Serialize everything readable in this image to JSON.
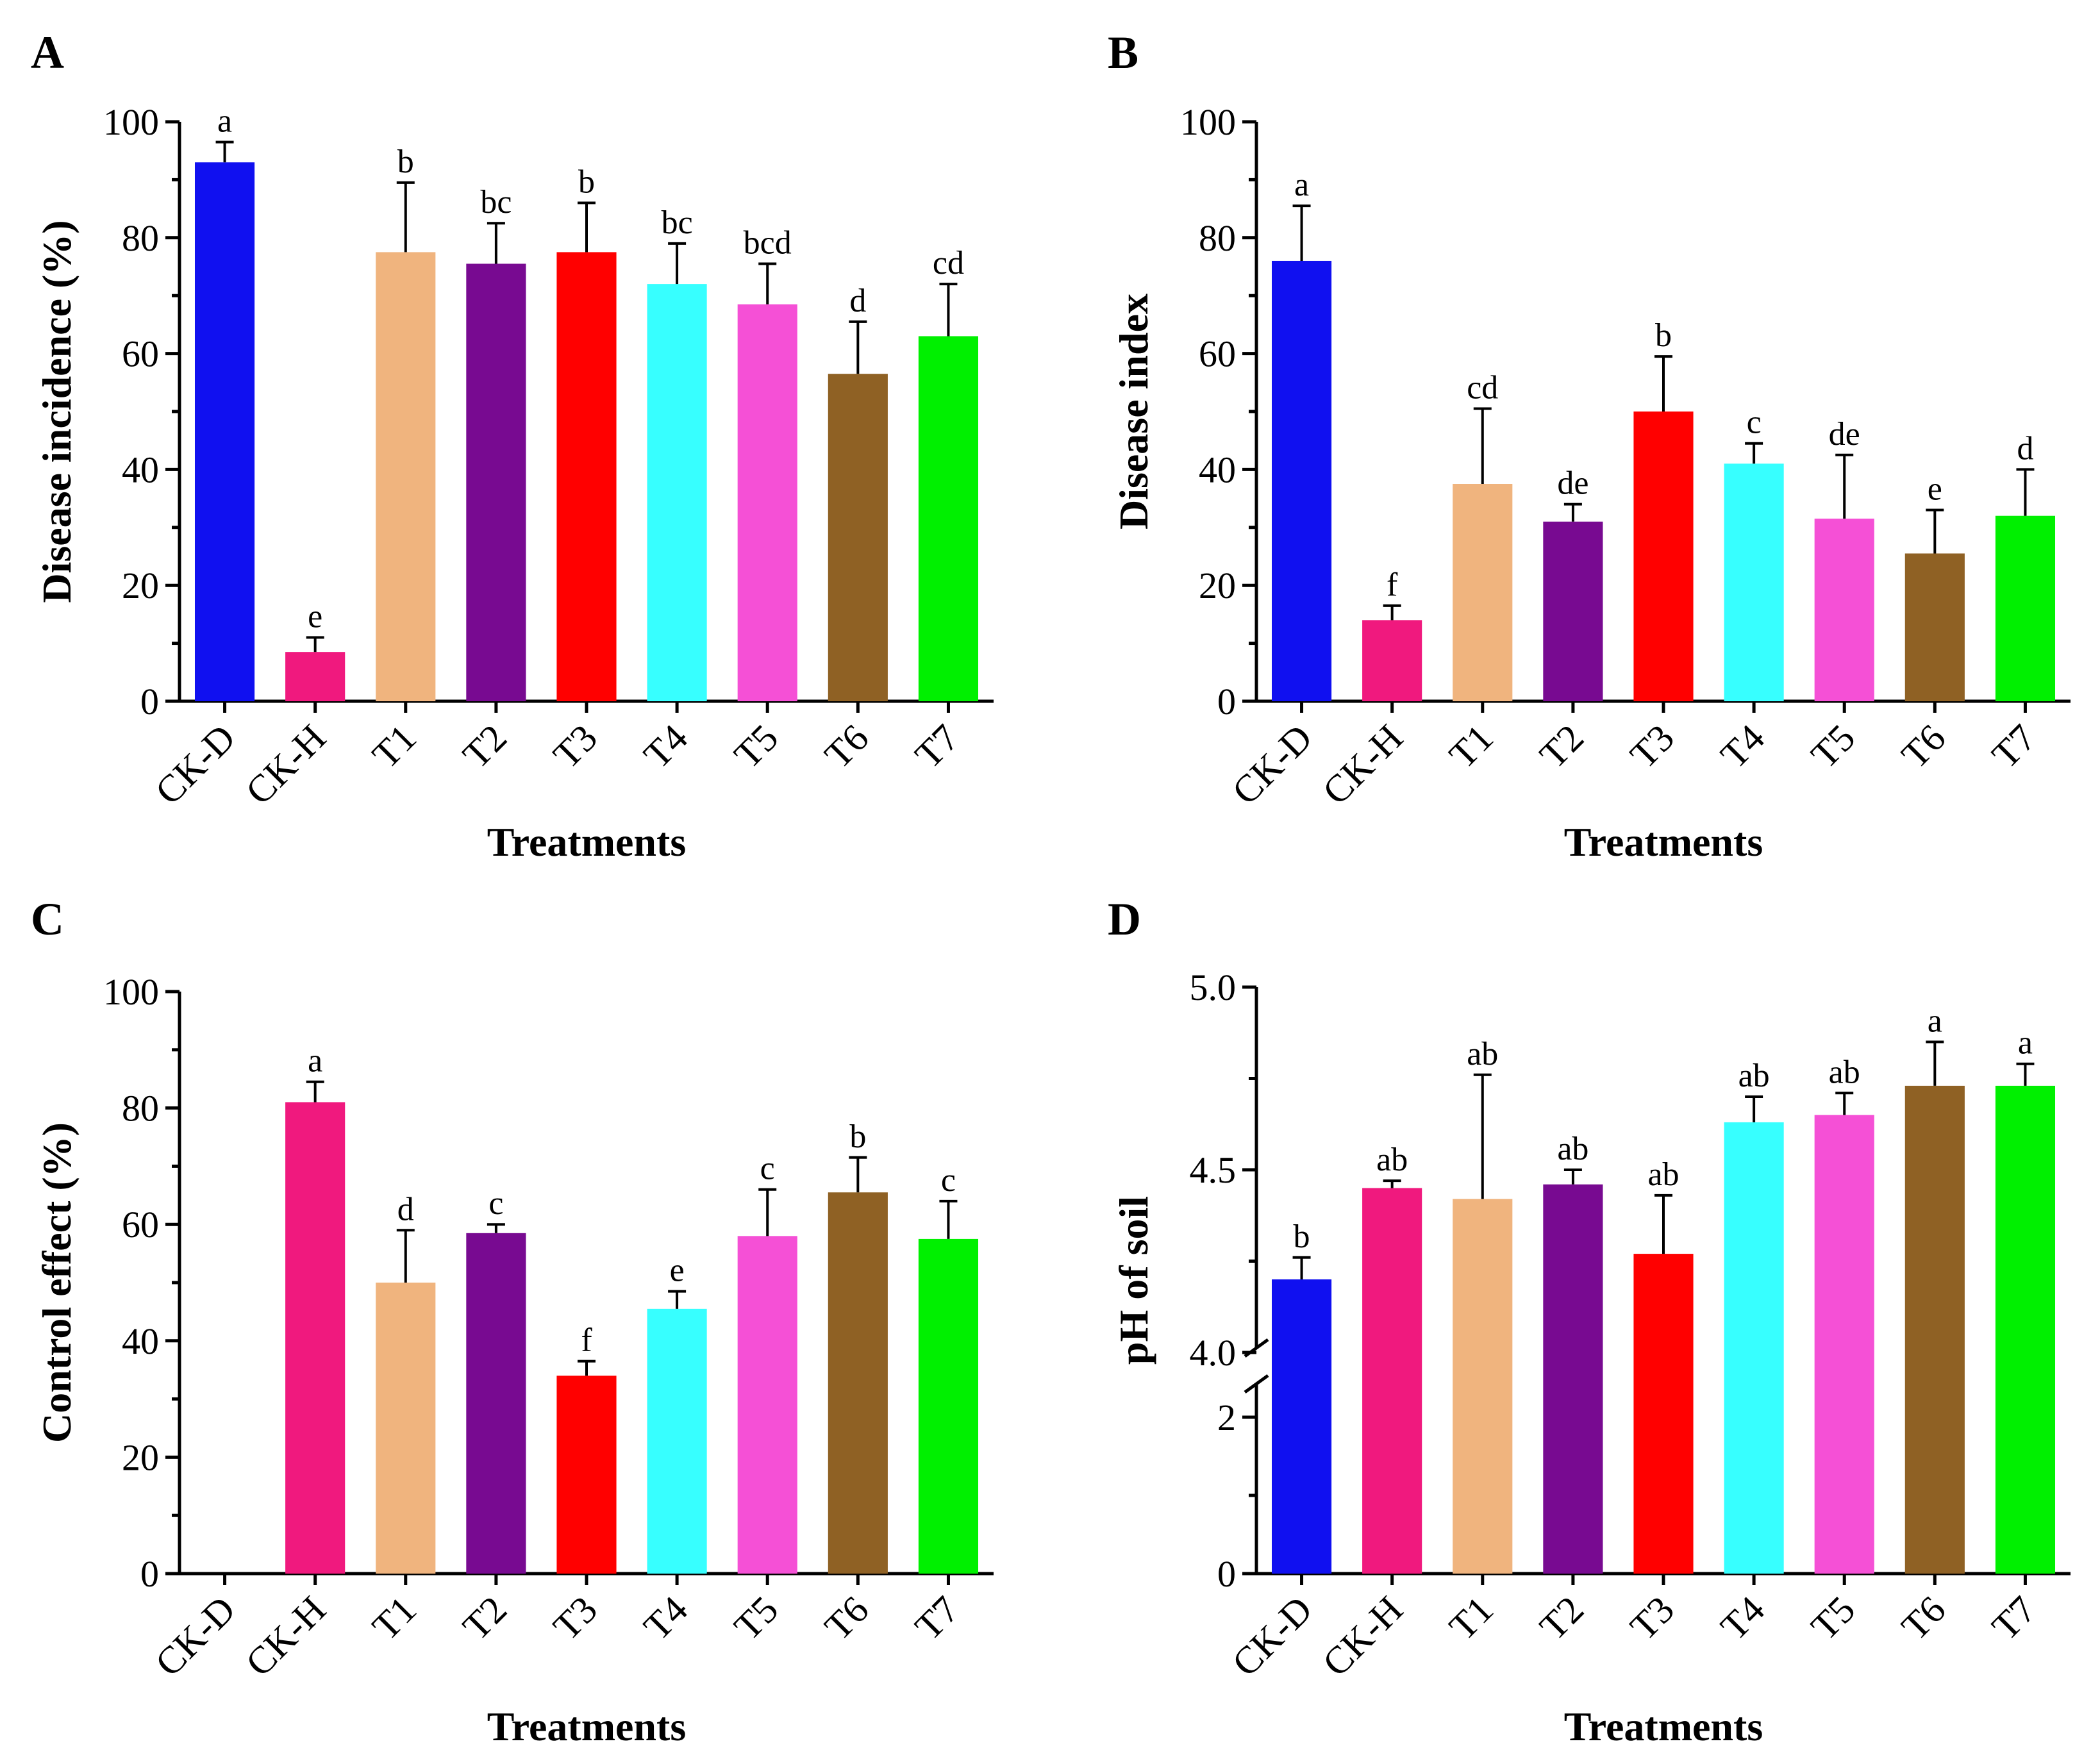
{
  "figure": {
    "panels": [
      {
        "letter": "A"
      },
      {
        "letter": "B"
      },
      {
        "letter": "C"
      },
      {
        "letter": "D"
      }
    ]
  },
  "colors": {
    "CK-D": "#1010f0",
    "CK-H": "#f0197e",
    "T1": "#f0b47e",
    "T2": "#780a91",
    "T3": "#ff0000",
    "T4": "#37ffff",
    "T5": "#f550d6",
    "T6": "#8f6124",
    "T7": "#00f000"
  },
  "chart_data": [
    {
      "type": "bar",
      "panel": "A",
      "title": "",
      "xlabel": "Treatments",
      "ylabel": "Disease incidence (%)",
      "ylim": [
        0,
        100
      ],
      "yticks": [
        "0",
        "20",
        "40",
        "60",
        "80",
        "100"
      ],
      "categories": [
        "CK-D",
        "CK-H",
        "T1",
        "T2",
        "T3",
        "T4",
        "T5",
        "T6",
        "T7"
      ],
      "values": [
        93,
        8.5,
        77.5,
        75.5,
        77.5,
        72,
        68.5,
        56.5,
        63
      ],
      "errors": [
        3.5,
        2.5,
        12,
        7,
        8.5,
        7,
        7,
        9,
        9
      ],
      "letters": [
        "a",
        "e",
        "b",
        "bc",
        "b",
        "bc",
        "bcd",
        "d",
        "cd"
      ]
    },
    {
      "type": "bar",
      "panel": "B",
      "title": "",
      "xlabel": "Treatments",
      "ylabel": "Disease index",
      "ylim": [
        0,
        100
      ],
      "yticks": [
        "0",
        "20",
        "40",
        "60",
        "80",
        "100"
      ],
      "categories": [
        "CK-D",
        "CK-H",
        "T1",
        "T2",
        "T3",
        "T4",
        "T5",
        "T6",
        "T7"
      ],
      "values": [
        76,
        14,
        37.5,
        31,
        50,
        41,
        31.5,
        25.5,
        32
      ],
      "errors": [
        9.5,
        2.5,
        13,
        3,
        9.5,
        3.5,
        11,
        7.5,
        8
      ],
      "letters": [
        "a",
        "f",
        "cd",
        "de",
        "b",
        "c",
        "de",
        "e",
        "d"
      ]
    },
    {
      "type": "bar",
      "panel": "C",
      "title": "",
      "xlabel": "Treatments",
      "ylabel": "Control effect (%)",
      "ylim": [
        0,
        100
      ],
      "yticks": [
        "0",
        "20",
        "40",
        "60",
        "80",
        "100"
      ],
      "categories": [
        "CK-D",
        "CK-H",
        "T1",
        "T2",
        "T3",
        "T4",
        "T5",
        "T6",
        "T7"
      ],
      "values": [
        0,
        81,
        50,
        58.5,
        34,
        45.5,
        58,
        65.5,
        57.5
      ],
      "errors": [
        0,
        3.5,
        9,
        1.5,
        2.5,
        3,
        8,
        6,
        6.5
      ],
      "letters": [
        "",
        "a",
        "d",
        "c",
        "f",
        "e",
        "c",
        "b",
        "c"
      ]
    },
    {
      "type": "bar",
      "panel": "D",
      "title": "",
      "xlabel": "Treatments",
      "ylabel": "pH of soil",
      "ylim": [
        0,
        5
      ],
      "axis_break": [
        2.5,
        4.0
      ],
      "yticks": [
        "0",
        "2",
        "4.0",
        "4.5",
        "5.0"
      ],
      "categories": [
        "CK-D",
        "CK-H",
        "T1",
        "T2",
        "T3",
        "T4",
        "T5",
        "T6",
        "T7"
      ],
      "values": [
        4.2,
        4.45,
        4.42,
        4.46,
        4.27,
        4.63,
        4.65,
        4.73,
        4.73
      ],
      "errors": [
        0.06,
        0.02,
        0.34,
        0.04,
        0.16,
        0.07,
        0.06,
        0.12,
        0.06
      ],
      "letters": [
        "b",
        "ab",
        "ab",
        "ab",
        "ab",
        "ab",
        "ab",
        "a",
        "a"
      ]
    }
  ]
}
